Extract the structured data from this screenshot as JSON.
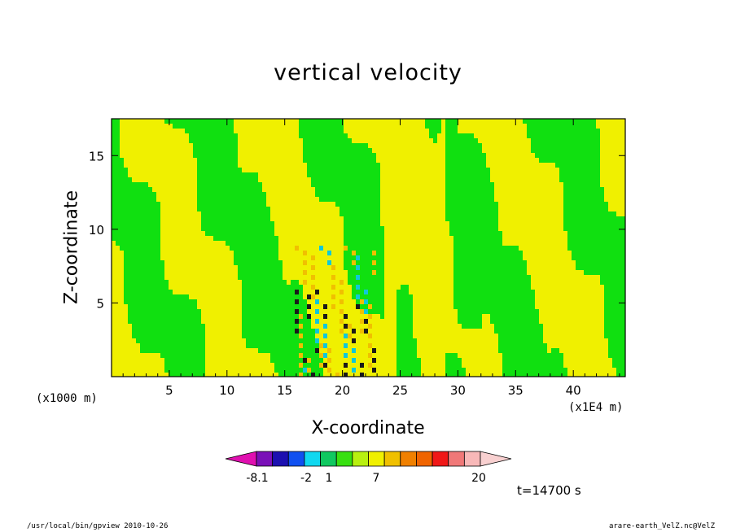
{
  "chart_data": {
    "type": "heatmap",
    "title": "vertical velocity",
    "xlabel": "X-coordinate",
    "ylabel": "Z-coordinate",
    "x_unit": "(x1000 m)",
    "x_scale_label": "(x1E4 m)",
    "xlim": [
      0,
      44.5
    ],
    "ylim": [
      0,
      17.5
    ],
    "x_ticks": [
      "5",
      "10",
      "15",
      "20",
      "25",
      "30",
      "35",
      "40"
    ],
    "y_ticks": [
      "5",
      "10",
      "15"
    ],
    "colorbar": {
      "labels": [
        "-8.1",
        "-2",
        "1",
        "7",
        "20"
      ],
      "colors": [
        "#e010b0",
        "#7a10b8",
        "#1c10b0",
        "#1050f0",
        "#10d8f0",
        "#10c860",
        "#38e010",
        "#b8f010",
        "#f0f000",
        "#f0c000",
        "#f08000",
        "#f06400",
        "#f01818",
        "#f07878",
        "#f8b8b8",
        "#f8d0d0"
      ]
    },
    "dominant_colors": {
      "positive_small": "#f0f000",
      "negative_small": "#10e010"
    },
    "time_label": "t=14700 s"
  },
  "footer": {
    "left": "/usr/local/bin/gpview   2010-10-26",
    "right": "arare-earth_VelZ.nc@VelZ"
  }
}
